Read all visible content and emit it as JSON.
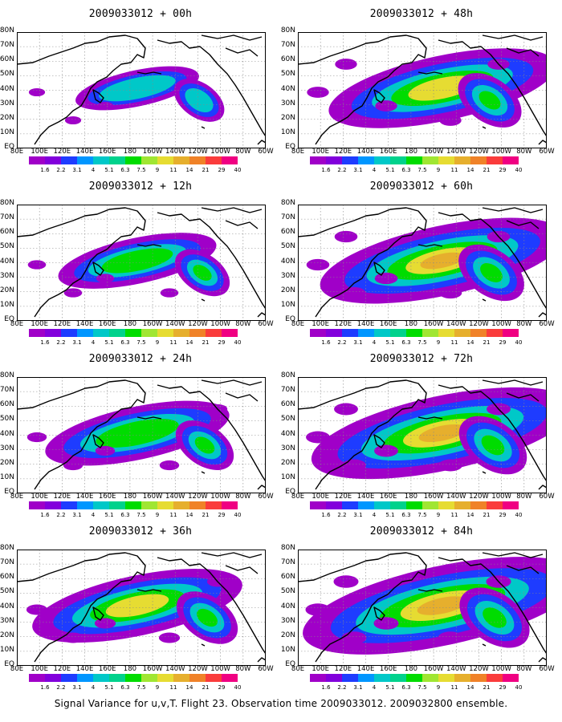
{
  "caption": "Signal Variance for u,v,T. Flight 23. Observation time 2009033012. 2009032800 ensemble.",
  "lat_labels": [
    "80N",
    "70N",
    "60N",
    "50N",
    "40N",
    "30N",
    "20N",
    "10N",
    "EQ"
  ],
  "lon_labels": [
    "80E",
    "100E",
    "120E",
    "140E",
    "160E",
    "180",
    "160W",
    "140W",
    "120W",
    "100W",
    "80W",
    "60W"
  ],
  "colorbar": {
    "labels": [
      "1.6",
      "2.2",
      "3.1",
      "4",
      "5.1",
      "6.3",
      "7.5",
      "9",
      "11",
      "14",
      "21",
      "29",
      "40"
    ],
    "colors": [
      "#a000c8",
      "#8200dc",
      "#1e3cff",
      "#0096ff",
      "#00c8c8",
      "#00d28c",
      "#00dc00",
      "#a0e632",
      "#e6dc32",
      "#e6af2d",
      "#f08228",
      "#fa3c3c",
      "#f00082"
    ]
  },
  "panels": [
    {
      "title": "2009033012 + 00h",
      "intensity": 0.35
    },
    {
      "title": "2009033012 + 12h",
      "intensity": 0.55
    },
    {
      "title": "2009033012 + 24h",
      "intensity": 0.7
    },
    {
      "title": "2009033012 + 36h",
      "intensity": 0.85
    },
    {
      "title": "2009033012 + 48h",
      "intensity": 0.95
    },
    {
      "title": "2009033012 + 60h",
      "intensity": 1.05
    },
    {
      "title": "2009033012 + 72h",
      "intensity": 1.15
    },
    {
      "title": "2009033012 + 84h",
      "intensity": 1.25
    }
  ]
}
